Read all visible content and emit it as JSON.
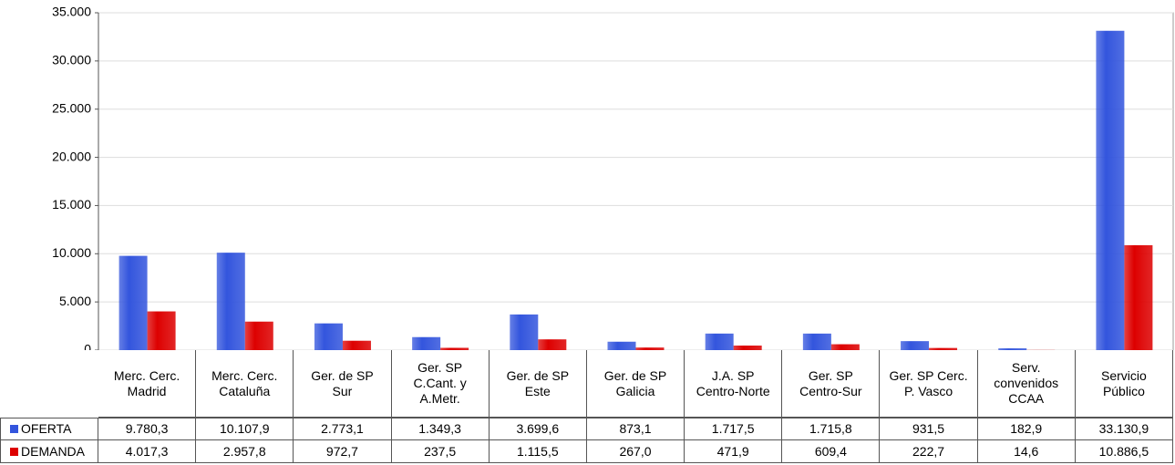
{
  "chart_data": {
    "type": "bar",
    "categories": [
      "Merc. Cerc.\nMadrid",
      "Merc. Cerc.\nCataluña",
      "Ger. de SP\nSur",
      "Ger. SP\nC.Cant. y\nA.Metr.",
      "Ger. de SP\nEste",
      "Ger. de SP\nGalicia",
      "J.A. SP\nCentro-Norte",
      "Ger. SP\nCentro-Sur",
      "Ger. SP Cerc.\nP. Vasco",
      "Serv.\nconvenidos\nCCAA",
      "Servicio\nPúblico"
    ],
    "series": [
      {
        "name": "OFERTA",
        "color": "#3355dd",
        "values": [
          9780.3,
          10107.9,
          2773.1,
          1349.3,
          3699.6,
          873.1,
          1717.5,
          1715.8,
          931.5,
          182.9,
          33130.9
        ],
        "value_labels": [
          "9.780,3",
          "10.107,9",
          "2.773,1",
          "1.349,3",
          "3.699,6",
          "873,1",
          "1.717,5",
          "1.715,8",
          "931,5",
          "182,9",
          "33.130,9"
        ]
      },
      {
        "name": "DEMANDA",
        "color": "#dd0000",
        "values": [
          4017.3,
          2957.8,
          972.7,
          237.5,
          1115.5,
          267.0,
          471.9,
          609.4,
          222.7,
          14.6,
          10886.5
        ],
        "value_labels": [
          "4.017,3",
          "2.957,8",
          "972,7",
          "237,5",
          "1.115,5",
          "267,0",
          "471,9",
          "609,4",
          "222,7",
          "14,6",
          "10.886,5"
        ]
      }
    ],
    "ylim": [
      0,
      35000
    ],
    "yticks": [
      0,
      {
        "value": 5000,
        "label": "5.000"
      },
      {
        "value": 10000,
        "label": "10.000"
      },
      {
        "value": 15000,
        "label": "15.000"
      },
      {
        "value": 20000,
        "label": "20.000"
      },
      {
        "value": 25000,
        "label": "25.000"
      },
      {
        "value": 30000,
        "label": "30.000"
      },
      {
        "value": 35000,
        "label": "35.000"
      }
    ],
    "grid": true
  }
}
